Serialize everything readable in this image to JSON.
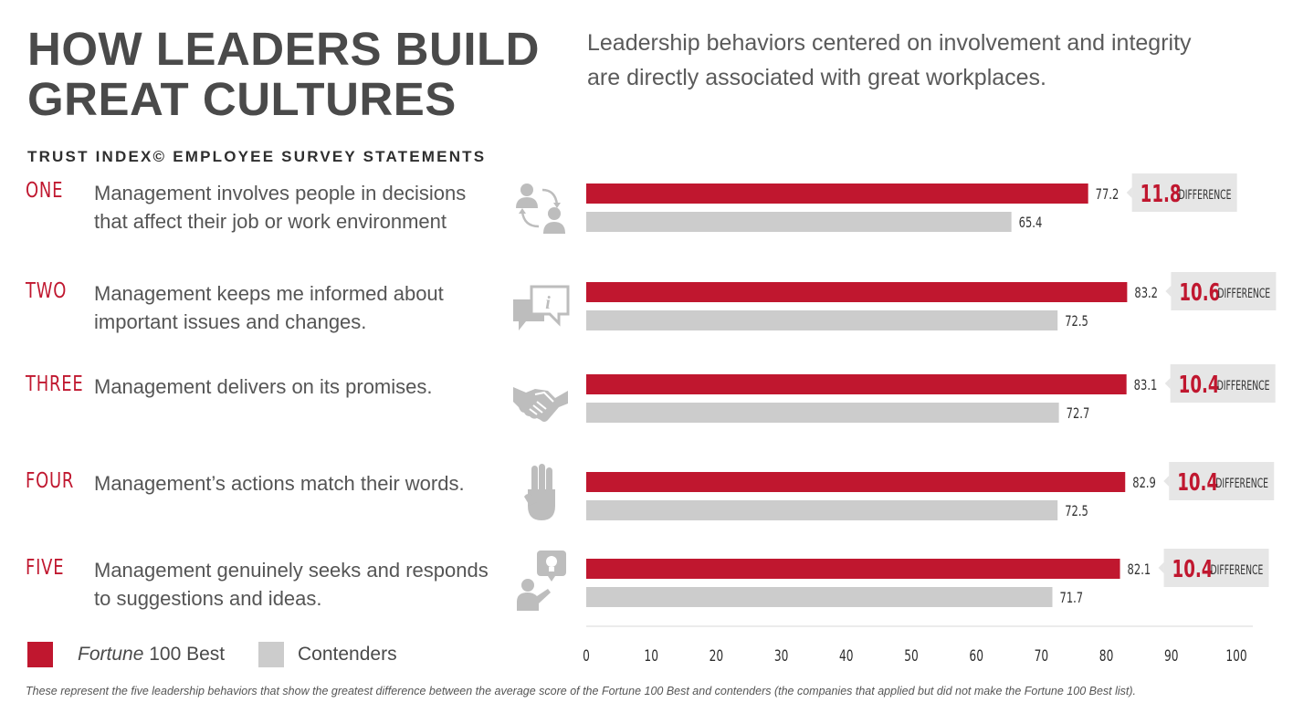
{
  "header": {
    "title": "HOW LEADERS BUILD\nGREAT CULTURES",
    "subtitle": "Leadership behaviors centered on involvement and integrity are directly associated with great workplaces.",
    "section_label": "TRUST INDEX© EMPLOYEE SURVEY STATEMENTS"
  },
  "statements": [
    {
      "num": "ONE",
      "text": "Management involves people in decisions that affect their job or work environment",
      "icon": "people-exchange-icon"
    },
    {
      "num": "TWO",
      "text": "Management keeps me informed about important issues and changes.",
      "icon": "info-speech-bubble-icon"
    },
    {
      "num": "THREE",
      "text": "Management delivers on its promises.",
      "icon": "handshake-icon"
    },
    {
      "num": "FOUR",
      "text": "Management’s actions match their words.",
      "icon": "scout-salute-hand-icon"
    },
    {
      "num": "FIVE",
      "text": "Management genuinely seeks and responds to suggestions and ideas.",
      "icon": "person-idea-lightbulb-icon"
    }
  ],
  "legend": {
    "best_prefix": "Fortune",
    "best_suffix": " 100 Best",
    "contenders": "Contenders"
  },
  "colors": {
    "best": "#c0172f",
    "contenders": "#cccccc",
    "badge_bg": "#e6e6e6",
    "text": "#4a4a4a",
    "icon": "#bdbdbd"
  },
  "chart_data": {
    "type": "bar",
    "orientation": "horizontal",
    "categories": [
      "ONE",
      "TWO",
      "THREE",
      "FOUR",
      "FIVE"
    ],
    "series": [
      {
        "name": "Fortune 100 Best",
        "values": [
          77.2,
          83.2,
          83.1,
          82.9,
          82.1
        ]
      },
      {
        "name": "Contenders",
        "values": [
          65.4,
          72.5,
          72.7,
          72.5,
          71.7
        ]
      }
    ],
    "differences": [
      "11.8",
      "10.6",
      "10.4",
      "10.4",
      "10.4"
    ],
    "difference_label": "DIFFERENCE",
    "xlim": [
      0,
      100
    ],
    "xticks": [
      0,
      10,
      20,
      30,
      40,
      50,
      60,
      70,
      80,
      90,
      100
    ],
    "legend_position": "bottom-left"
  },
  "footnote": "These represent the five leadership behaviors that show the greatest difference between the average score of the Fortune 100 Best and contenders (the companies that applied but did not make the Fortune 100 Best list)."
}
